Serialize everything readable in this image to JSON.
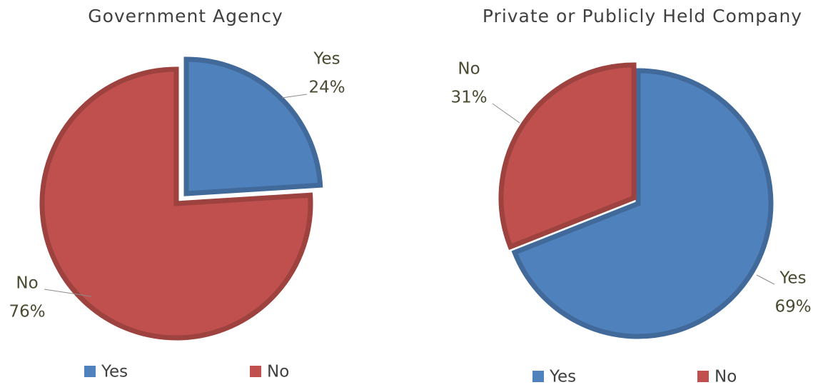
{
  "chart_data": [
    {
      "type": "pie",
      "title": "Government Agency",
      "categories": [
        "Yes",
        "No"
      ],
      "values": [
        24,
        76
      ],
      "value_labels": [
        "24%",
        "76%"
      ],
      "colors": [
        "#4f81bd",
        "#c0504d"
      ],
      "legend": "bottom"
    },
    {
      "type": "pie",
      "title": "Private or Publicly Held Company",
      "categories": [
        "Yes",
        "No"
      ],
      "values": [
        69,
        31
      ],
      "value_labels": [
        "69%",
        "31%"
      ],
      "colors": [
        "#4f81bd",
        "#c0504d"
      ],
      "legend": "bottom"
    }
  ]
}
